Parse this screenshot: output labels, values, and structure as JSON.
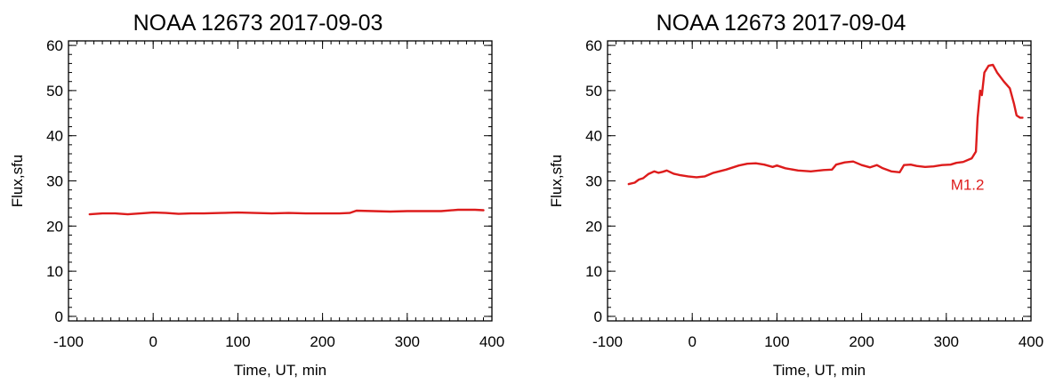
{
  "colors": {
    "series": "#dd1c1c",
    "annotation": "#dd1c1c",
    "axes": "#000000"
  },
  "chart_data": [
    {
      "type": "line",
      "title": "NOAA 12673  2017-09-03",
      "xlabel": "Time, UT, min",
      "ylabel": "Flux,sfu",
      "xlim": [
        -100,
        400
      ],
      "ylim": [
        -1,
        61
      ],
      "xticks": [
        -100,
        0,
        100,
        200,
        300,
        400
      ],
      "yticks": [
        0,
        10,
        20,
        30,
        40,
        50,
        60
      ],
      "grid": false,
      "series": [
        {
          "x": [
            -75,
            -60,
            -45,
            -30,
            -15,
            0,
            15,
            30,
            45,
            60,
            80,
            100,
            120,
            140,
            160,
            180,
            200,
            220,
            232,
            240,
            260,
            280,
            300,
            320,
            340,
            360,
            380,
            390
          ],
          "y": [
            22.6,
            22.8,
            22.8,
            22.6,
            22.8,
            23.0,
            22.9,
            22.7,
            22.8,
            22.8,
            22.9,
            23.0,
            22.9,
            22.8,
            22.9,
            22.8,
            22.8,
            22.8,
            22.9,
            23.4,
            23.3,
            23.2,
            23.3,
            23.3,
            23.3,
            23.6,
            23.6,
            23.5
          ]
        }
      ],
      "annotations": []
    },
    {
      "type": "line",
      "title": "NOAA 12673  2017-09-04",
      "xlabel": "Time, UT, min",
      "ylabel": "Flux,sfu",
      "xlim": [
        -100,
        400
      ],
      "ylim": [
        -1,
        61
      ],
      "xticks": [
        -100,
        0,
        100,
        200,
        300,
        400
      ],
      "yticks": [
        0,
        10,
        20,
        30,
        40,
        50,
        60
      ],
      "grid": false,
      "series": [
        {
          "x": [
            -75,
            -68,
            -63,
            -58,
            -52,
            -45,
            -40,
            -35,
            -30,
            -22,
            -15,
            -5,
            5,
            15,
            25,
            40,
            55,
            65,
            75,
            85,
            95,
            100,
            110,
            125,
            140,
            155,
            165,
            170,
            180,
            190,
            200,
            210,
            218,
            225,
            235,
            245,
            250,
            258,
            265,
            275,
            285,
            295,
            305,
            312,
            320,
            330,
            335,
            337,
            340,
            342,
            345,
            350,
            355,
            360,
            368,
            375,
            380,
            383,
            387,
            390
          ],
          "y": [
            29.3,
            29.6,
            30.3,
            30.6,
            31.5,
            32.1,
            31.8,
            32.0,
            32.3,
            31.6,
            31.3,
            31.0,
            30.8,
            31.0,
            31.8,
            32.5,
            33.4,
            33.8,
            33.9,
            33.6,
            33.1,
            33.4,
            32.8,
            32.3,
            32.1,
            32.4,
            32.5,
            33.6,
            34.1,
            34.3,
            33.5,
            33.0,
            33.5,
            32.8,
            32.1,
            31.9,
            33.5,
            33.6,
            33.3,
            33.1,
            33.2,
            33.5,
            33.6,
            34.0,
            34.2,
            35.0,
            36.5,
            44.0,
            50.0,
            49.0,
            54.0,
            55.5,
            55.7,
            54.0,
            52.0,
            50.5,
            47.0,
            44.5,
            44.0,
            44.0
          ]
        }
      ],
      "annotations": [
        {
          "text": "M1.2",
          "x": 325,
          "y": 28
        }
      ]
    }
  ]
}
